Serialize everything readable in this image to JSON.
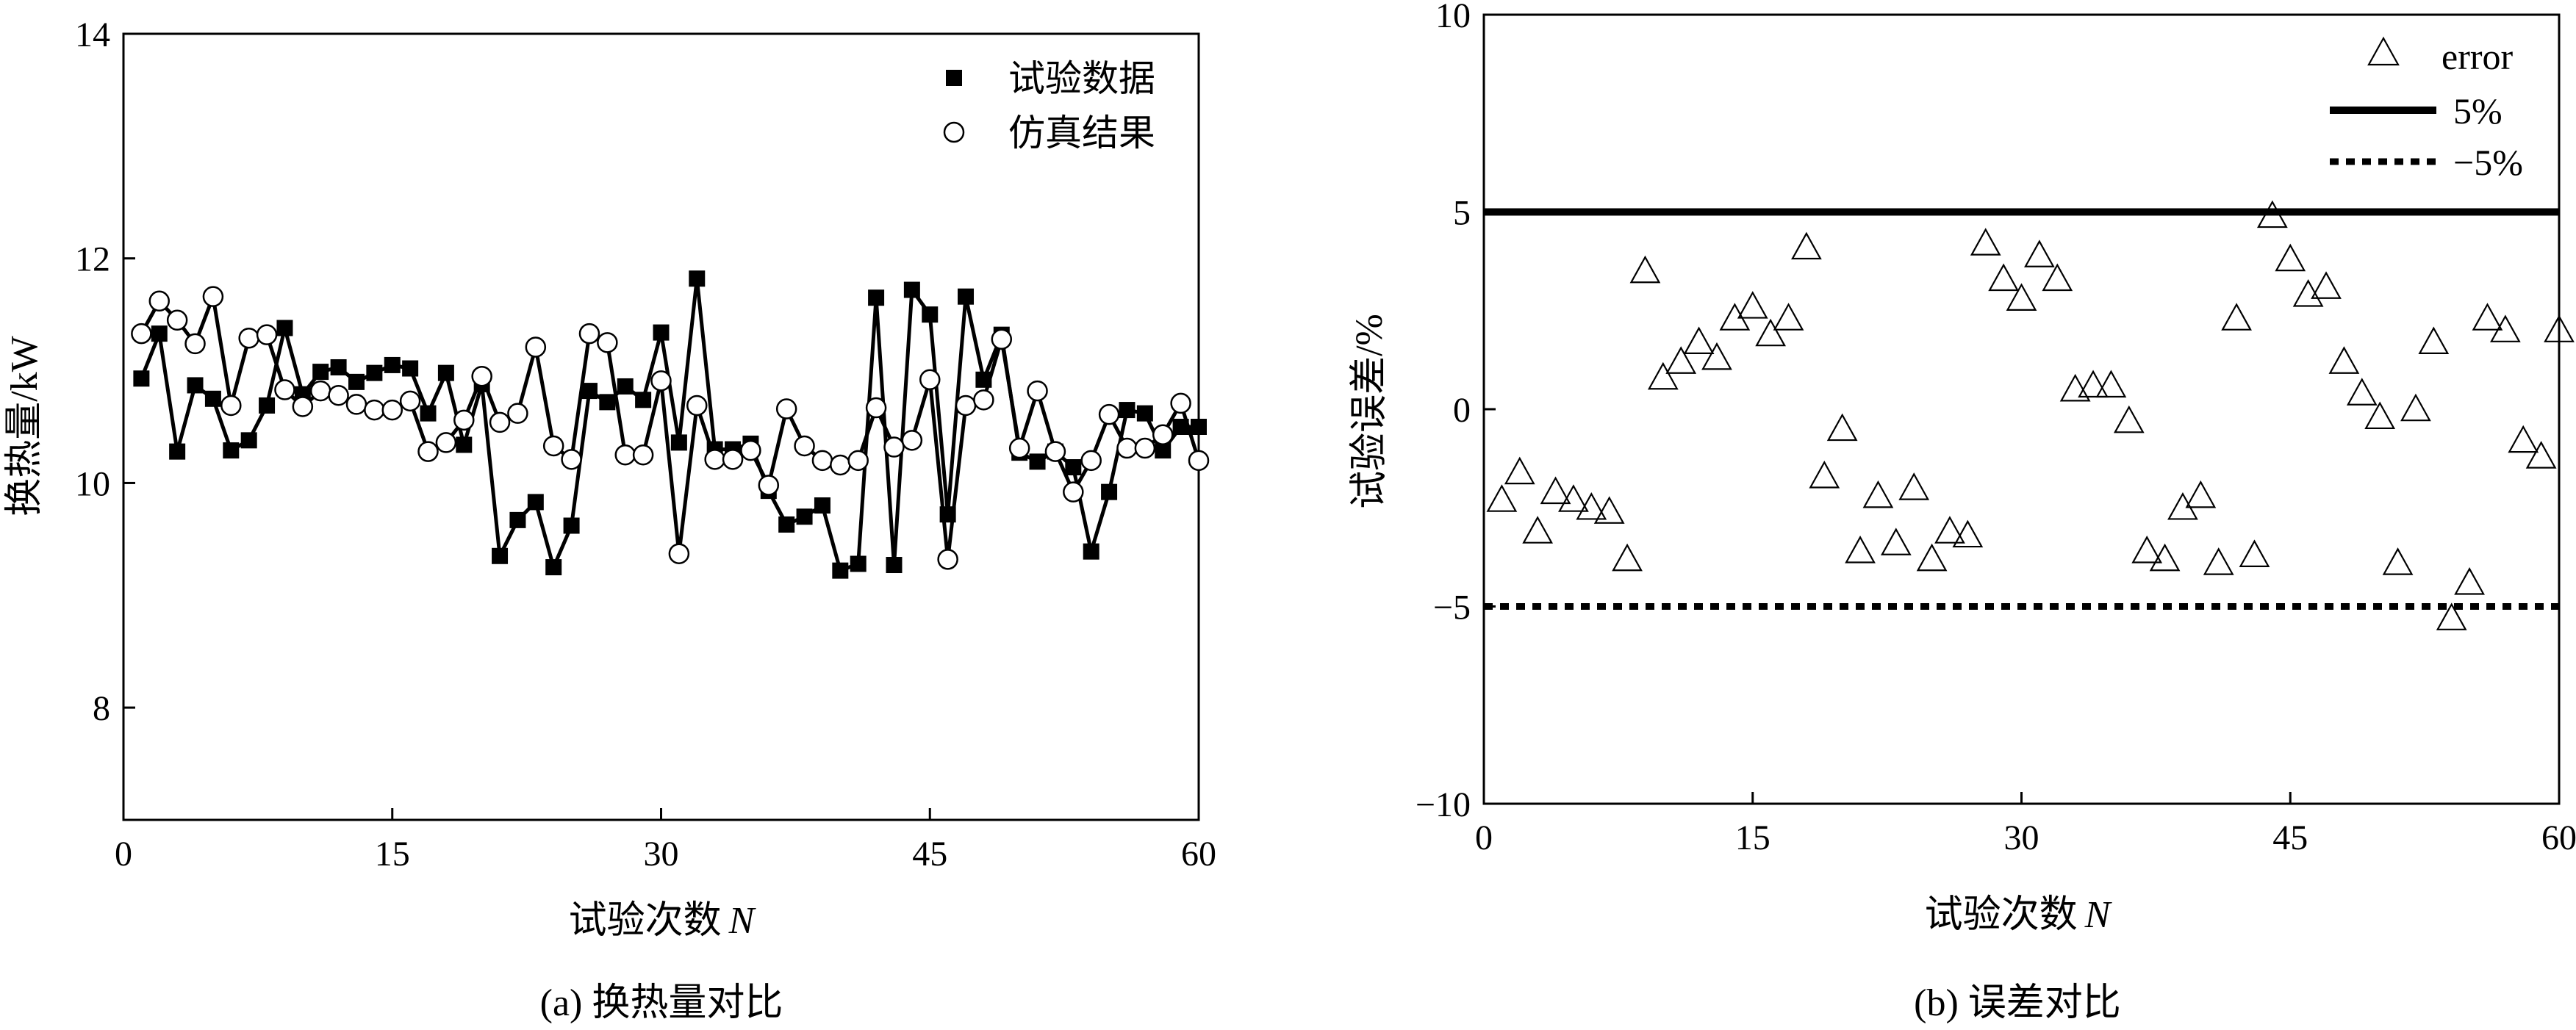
{
  "chart_data": [
    {
      "type": "line",
      "caption": "(a) 换热量对比",
      "xlabel": "试验次数",
      "xlabel_var": "N",
      "ylabel": "换热量/kW",
      "xlim": [
        0,
        60
      ],
      "ylim": [
        7,
        14
      ],
      "xticks": [
        0,
        15,
        30,
        45,
        60
      ],
      "yticks": [
        8,
        10,
        12,
        14
      ],
      "legend_position": "top-right",
      "grid": false,
      "x": [
        1,
        2,
        3,
        4,
        5,
        6,
        7,
        8,
        9,
        10,
        11,
        12,
        13,
        14,
        15,
        16,
        17,
        18,
        19,
        20,
        21,
        22,
        23,
        24,
        25,
        26,
        27,
        28,
        29,
        30,
        31,
        32,
        33,
        34,
        35,
        36,
        37,
        38,
        39,
        40,
        41,
        42,
        43,
        44,
        45,
        46,
        47,
        48,
        49,
        50,
        51,
        52,
        53,
        54,
        55,
        56,
        57,
        58,
        59,
        60
      ],
      "series": [
        {
          "name": "试验数据",
          "marker": "filled-square",
          "values": [
            10.93,
            11.33,
            10.28,
            10.87,
            10.75,
            10.29,
            10.38,
            10.69,
            11.38,
            10.79,
            10.99,
            11.03,
            10.9,
            10.98,
            11.05,
            11.02,
            10.62,
            10.98,
            10.34,
            10.88,
            9.35,
            9.67,
            9.83,
            9.25,
            9.62,
            10.82,
            10.72,
            10.86,
            10.74,
            11.34,
            10.36,
            11.82,
            10.3,
            10.3,
            10.35,
            9.93,
            9.63,
            9.7,
            9.8,
            9.22,
            9.28,
            11.65,
            9.27,
            11.72,
            11.5,
            9.72,
            11.66,
            10.92,
            11.32,
            10.27,
            10.19,
            10.28,
            10.14,
            9.39,
            9.92,
            10.65,
            10.62,
            10.29,
            10.5,
            10.5
          ]
        },
        {
          "name": "仿真结果",
          "marker": "open-circle",
          "values": [
            11.33,
            11.62,
            11.45,
            11.24,
            11.66,
            10.69,
            11.29,
            11.32,
            10.83,
            10.68,
            10.82,
            10.78,
            10.7,
            10.65,
            10.65,
            10.73,
            10.28,
            10.36,
            10.56,
            10.95,
            10.54,
            10.62,
            11.21,
            10.33,
            10.21,
            11.33,
            11.25,
            10.25,
            10.25,
            10.91,
            9.37,
            10.69,
            10.21,
            10.21,
            10.29,
            9.98,
            10.66,
            10.33,
            10.2,
            10.16,
            10.2,
            10.67,
            10.32,
            10.38,
            10.92,
            9.32,
            10.69,
            10.74,
            11.28,
            10.31,
            10.82,
            10.28,
            9.92,
            10.2,
            10.61,
            10.31,
            10.31,
            10.43,
            10.71,
            10.2
          ]
        }
      ]
    },
    {
      "type": "scatter",
      "caption": "(b) 误差对比",
      "xlabel": "试验次数",
      "xlabel_var": "N",
      "ylabel": "试验误差/%",
      "xlim": [
        0,
        60
      ],
      "ylim": [
        -10,
        10
      ],
      "xticks": [
        0,
        15,
        30,
        45,
        60
      ],
      "yticks": [
        -10,
        -5,
        0,
        5,
        10
      ],
      "ytick_labels": [
        "−10",
        "−5",
        "0",
        "5",
        "10"
      ],
      "legend_position": "top-right",
      "grid": false,
      "x": [
        1,
        2,
        3,
        4,
        5,
        6,
        7,
        8,
        9,
        10,
        11,
        12,
        13,
        14,
        15,
        16,
        17,
        18,
        19,
        20,
        21,
        22,
        23,
        24,
        25,
        26,
        27,
        28,
        29,
        30,
        31,
        32,
        33,
        34,
        35,
        36,
        37,
        38,
        39,
        40,
        41,
        42,
        43,
        44,
        45,
        46,
        47,
        48,
        49,
        50,
        51,
        52,
        53,
        54,
        55,
        56,
        57,
        58,
        59,
        60
      ],
      "series": [
        {
          "name": "error",
          "marker": "open-triangle",
          "values": [
            -2.3,
            -1.6,
            -3.1,
            -2.1,
            -2.3,
            -2.5,
            -2.6,
            -3.8,
            3.5,
            0.8,
            1.2,
            1.7,
            1.3,
            2.3,
            2.6,
            1.9,
            2.3,
            4.1,
            -1.7,
            -0.5,
            -3.6,
            -2.2,
            -3.4,
            -2.0,
            -3.8,
            -3.1,
            -3.2,
            4.2,
            3.3,
            2.8,
            3.9,
            3.3,
            0.5,
            0.6,
            0.6,
            -0.3,
            -3.6,
            -3.8,
            -2.5,
            -2.2,
            -3.9,
            2.3,
            -3.7,
            4.9,
            3.8,
            2.9,
            3.1,
            1.2,
            0.4,
            -0.2,
            -3.9,
            0.0,
            1.7,
            -5.3,
            -4.4,
            2.3,
            2.0,
            -0.8,
            -1.2,
            2.0
          ]
        }
      ],
      "reference_lines": [
        {
          "name": "5%",
          "y": 5,
          "style": "solid"
        },
        {
          "name": "−5%",
          "y": -5,
          "style": "dotted"
        }
      ]
    }
  ]
}
